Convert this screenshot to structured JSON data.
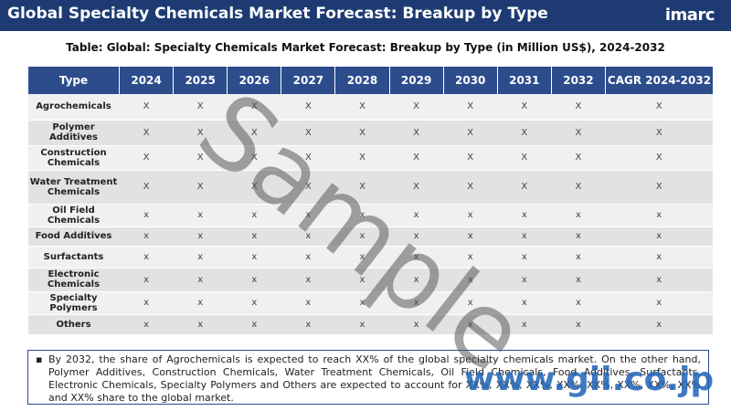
{
  "header": {
    "title": "Global Specialty Chemicals Market Forecast: Breakup by Type",
    "logo": "imarc"
  },
  "table": {
    "title": "Table: Global: Specialty Chemicals Market Forecast: Breakup by Type (in Million US$), 2024-2032",
    "columns": [
      "Type",
      "2024",
      "2025",
      "2026",
      "2027",
      "2028",
      "2029",
      "2030",
      "2031",
      "2032",
      "CAGR 2024-2032"
    ],
    "rows": [
      [
        "Agrochemicals",
        "X",
        "X",
        "X",
        "X",
        "X",
        "X",
        "X",
        "X",
        "X",
        "X"
      ],
      [
        "Polymer Additives",
        "X",
        "X",
        "X",
        "X",
        "X",
        "X",
        "X",
        "X",
        "X",
        "X"
      ],
      [
        "Construction Chemicals",
        "X",
        "X",
        "X",
        "X",
        "X",
        "X",
        "X",
        "X",
        "X",
        "X"
      ],
      [
        "Water Treatment Chemicals",
        "X",
        "X",
        "X",
        "X",
        "X",
        "X",
        "X",
        "X",
        "X",
        "X"
      ],
      [
        "Oil Field Chemicals",
        "x",
        "x",
        "x",
        "x",
        "x",
        "x",
        "x",
        "x",
        "x",
        "x"
      ],
      [
        "Food Additives",
        "x",
        "x",
        "x",
        "x",
        "x",
        "x",
        "x",
        "x",
        "x",
        "x"
      ],
      [
        "Surfactants",
        "x",
        "x",
        "x",
        "x",
        "x",
        "x",
        "x",
        "x",
        "x",
        "x"
      ],
      [
        "Electronic Chemicals",
        "x",
        "x",
        "x",
        "x",
        "x",
        "x",
        "x",
        "x",
        "x",
        "x"
      ],
      [
        "Specialty Polymers",
        "x",
        "x",
        "x",
        "x",
        "x",
        "x",
        "x",
        "x",
        "x",
        "x"
      ],
      [
        "Others",
        "x",
        "x",
        "x",
        "x",
        "x",
        "x",
        "x",
        "x",
        "x",
        "x"
      ]
    ]
  },
  "note": "By 2032, the share of Agrochemicals is expected to reach XX% of the global specialty chemicals market. On the other hand, Polymer Additives, Construction Chemicals, Water Treatment Chemicals, Oil Field Chemicals, Food Additives, Surfactants, Electronic Chemicals, Specialty Polymers and Others are expected to account for XX%, XX%, XX%, XX%, XX%, XX%, XX%, XX% and XX% share to the global market.",
  "watermark": "Sample",
  "site": "www.gii.co.jp"
}
